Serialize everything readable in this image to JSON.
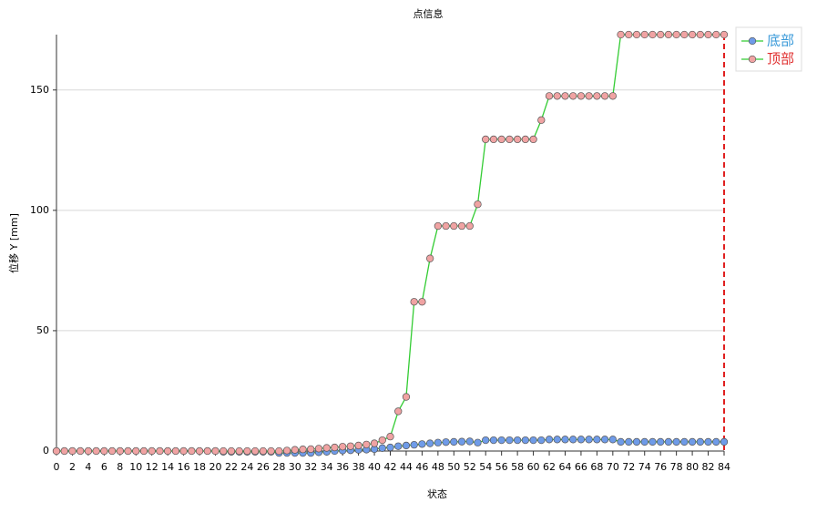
{
  "chart_data": {
    "type": "line",
    "title": "点信息",
    "x_label": "状态",
    "y_label": "位移 Y [mm]",
    "x": [
      0,
      1,
      2,
      3,
      4,
      5,
      6,
      7,
      8,
      9,
      10,
      11,
      12,
      13,
      14,
      15,
      16,
      17,
      18,
      19,
      20,
      21,
      22,
      23,
      24,
      25,
      26,
      27,
      28,
      29,
      30,
      31,
      32,
      33,
      34,
      35,
      36,
      37,
      38,
      39,
      40,
      41,
      42,
      43,
      44,
      45,
      46,
      47,
      48,
      49,
      50,
      51,
      52,
      53,
      54,
      55,
      56,
      57,
      58,
      59,
      60,
      61,
      62,
      63,
      64,
      65,
      66,
      67,
      68,
      69,
      70,
      71,
      72,
      73,
      74,
      75,
      76,
      77,
      78,
      79,
      80,
      81,
      82,
      83,
      84
    ],
    "series": [
      {
        "name": "底部",
        "color": "#6f9be8",
        "legend_color": "#3a9ad9",
        "values": [
          0,
          0,
          0,
          0,
          0,
          0,
          0,
          0,
          0,
          0,
          0,
          0,
          0,
          0,
          0,
          0,
          0,
          0,
          0,
          0,
          0,
          -0.3,
          -0.3,
          -0.3,
          -0.3,
          -0.3,
          -0.3,
          -0.3,
          -0.8,
          -0.8,
          -0.8,
          -0.8,
          -0.8,
          -0.5,
          -0.3,
          0,
          0.2,
          0.3,
          0.5,
          0.6,
          0.8,
          1.2,
          1.5,
          2,
          2.3,
          2.6,
          2.9,
          3.2,
          3.5,
          3.7,
          3.8,
          3.9,
          4,
          3.5,
          4.5,
          4.5,
          4.5,
          4.5,
          4.5,
          4.5,
          4.5,
          4.5,
          4.8,
          4.8,
          4.8,
          4.8,
          4.8,
          4.8,
          4.8,
          4.8,
          4.8,
          3.8,
          3.8,
          3.8,
          3.8,
          3.8,
          3.8,
          3.8,
          3.8,
          3.8,
          3.8,
          3.8,
          3.8,
          3.8,
          3.8
        ]
      },
      {
        "name": "顶部",
        "color": "#f0a3a3",
        "legend_color": "#e03030",
        "values": [
          0,
          0,
          0,
          0,
          0,
          0,
          0,
          0,
          0,
          0,
          0,
          0,
          0,
          0,
          0,
          0,
          0,
          0,
          0,
          0,
          0,
          0,
          0,
          0,
          0,
          0,
          0,
          0,
          0,
          0.2,
          0.5,
          0.7,
          0.8,
          1,
          1.3,
          1.5,
          1.8,
          2,
          2.3,
          2.7,
          3.2,
          4.5,
          6,
          16.5,
          22.5,
          62,
          62,
          80,
          93.5,
          93.5,
          93.5,
          93.5,
          93.5,
          102.5,
          129.5,
          129.5,
          129.5,
          129.5,
          129.5,
          129.5,
          129.5,
          137.5,
          147.5,
          147.5,
          147.5,
          147.5,
          147.5,
          147.5,
          147.5,
          147.5,
          147.5,
          173,
          173,
          173,
          173,
          173,
          173,
          173,
          173,
          173,
          173,
          173,
          173,
          173,
          173
        ]
      }
    ],
    "line_color": "#33cc33",
    "xlim": [
      0,
      84
    ],
    "xticks": [
      0,
      2,
      4,
      6,
      8,
      10,
      12,
      14,
      16,
      18,
      20,
      22,
      24,
      26,
      28,
      30,
      32,
      34,
      36,
      38,
      40,
      42,
      44,
      46,
      48,
      50,
      52,
      54,
      56,
      58,
      60,
      62,
      64,
      66,
      68,
      70,
      72,
      74,
      76,
      78,
      80,
      82,
      84
    ],
    "ylim": [
      0,
      173
    ],
    "yticks": [
      0,
      50,
      100,
      150
    ],
    "grid": true,
    "marker_x": 84,
    "marker_color": "#e02020",
    "legend": "top-right"
  }
}
